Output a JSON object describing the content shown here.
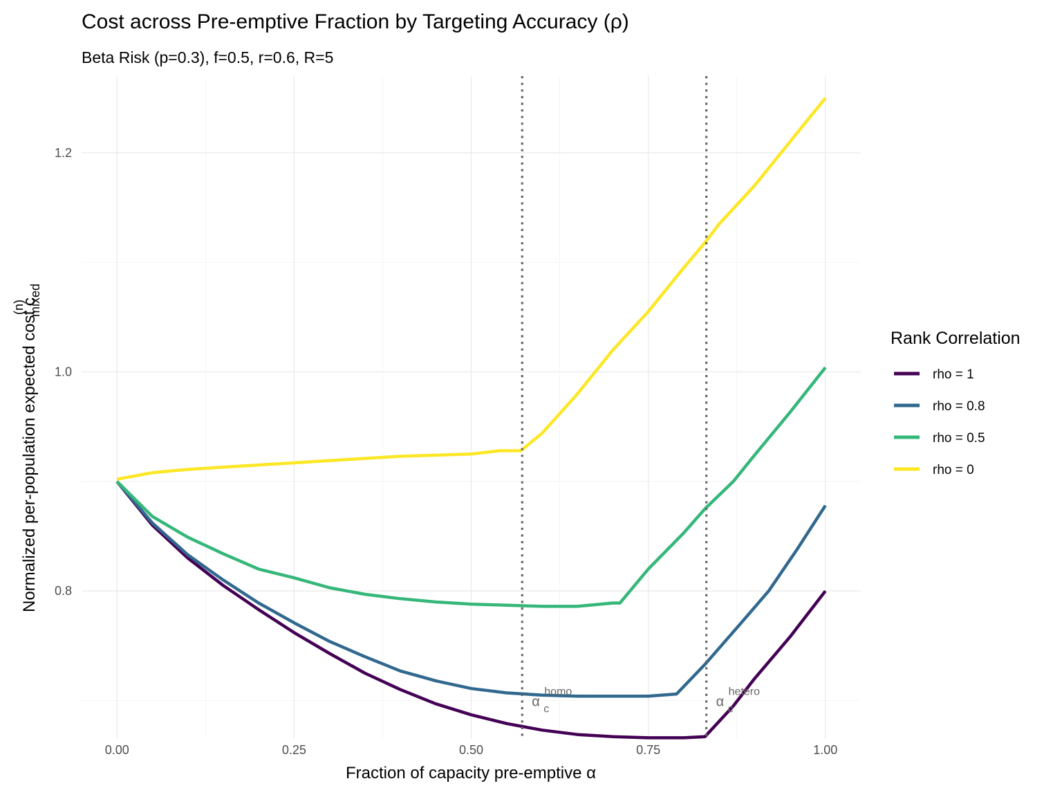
{
  "chart_data": {
    "type": "line",
    "title": "Cost across Pre-emptive Fraction by Targeting Accuracy (ρ)",
    "subtitle": "Beta Risk (p=0.3), f=0.5, r=0.6, R=5",
    "xlabel": "Fraction of capacity pre-emptive α",
    "ylabel": "Normalized per-population expected cost c",
    "ylabel_superscript": "(n)",
    "ylabel_subscript": "mixed",
    "xlim": [
      -0.05,
      1.05
    ],
    "ylim": [
      0.665,
      1.27
    ],
    "x_ticks": [
      0.0,
      0.25,
      0.5,
      0.75,
      1.0
    ],
    "x_tick_labels": [
      "0.00",
      "0.25",
      "0.50",
      "0.75",
      "1.00"
    ],
    "y_ticks": [
      0.8,
      1.0,
      1.2
    ],
    "y_tick_labels": [
      "0.8",
      "1.0",
      "1.2"
    ],
    "legend": {
      "title": "Rank Correlation",
      "position": "right"
    },
    "series": [
      {
        "name": "rho = 1",
        "color": "#440154",
        "x": [
          0.0,
          0.05,
          0.1,
          0.15,
          0.2,
          0.25,
          0.3,
          0.35,
          0.4,
          0.45,
          0.5,
          0.55,
          0.6,
          0.65,
          0.7,
          0.75,
          0.8,
          0.83,
          0.87,
          0.9,
          0.95,
          1.0
        ],
        "values": [
          0.9,
          0.86,
          0.83,
          0.805,
          0.783,
          0.762,
          0.743,
          0.725,
          0.71,
          0.697,
          0.687,
          0.679,
          0.673,
          0.669,
          0.667,
          0.666,
          0.666,
          0.667,
          0.695,
          0.72,
          0.758,
          0.8
        ]
      },
      {
        "name": "rho = 0.8",
        "color": "#31688e",
        "x": [
          0.0,
          0.05,
          0.1,
          0.15,
          0.2,
          0.25,
          0.3,
          0.35,
          0.4,
          0.45,
          0.5,
          0.55,
          0.6,
          0.65,
          0.7,
          0.75,
          0.79,
          0.83,
          0.88,
          0.92,
          0.96,
          1.0
        ],
        "values": [
          0.9,
          0.862,
          0.833,
          0.81,
          0.789,
          0.771,
          0.754,
          0.74,
          0.727,
          0.718,
          0.711,
          0.707,
          0.705,
          0.704,
          0.704,
          0.704,
          0.706,
          0.733,
          0.77,
          0.8,
          0.838,
          0.878
        ]
      },
      {
        "name": "rho = 0.5",
        "color": "#35b779",
        "x": [
          0.0,
          0.05,
          0.1,
          0.15,
          0.2,
          0.25,
          0.3,
          0.35,
          0.4,
          0.45,
          0.5,
          0.55,
          0.6,
          0.65,
          0.7,
          0.71,
          0.75,
          0.8,
          0.83,
          0.87,
          0.9,
          0.95,
          1.0
        ],
        "values": [
          0.9,
          0.868,
          0.849,
          0.834,
          0.82,
          0.812,
          0.803,
          0.797,
          0.793,
          0.79,
          0.788,
          0.787,
          0.786,
          0.786,
          0.789,
          0.789,
          0.82,
          0.853,
          0.875,
          0.9,
          0.924,
          0.963,
          1.004
        ]
      },
      {
        "name": "rho = 0",
        "color": "#fde725",
        "x": [
          0.0,
          0.05,
          0.1,
          0.15,
          0.2,
          0.25,
          0.3,
          0.35,
          0.4,
          0.45,
          0.5,
          0.54,
          0.57,
          0.6,
          0.65,
          0.7,
          0.75,
          0.8,
          0.83,
          0.85,
          0.9,
          0.95,
          1.0
        ],
        "values": [
          0.902,
          0.908,
          0.911,
          0.913,
          0.915,
          0.917,
          0.919,
          0.921,
          0.923,
          0.924,
          0.925,
          0.928,
          0.928,
          0.944,
          0.98,
          1.02,
          1.055,
          1.095,
          1.118,
          1.135,
          1.17,
          1.21,
          1.25
        ]
      }
    ],
    "vlines": [
      {
        "x": 0.572,
        "label": "α",
        "sup": "homo",
        "sub": "c"
      },
      {
        "x": 0.832,
        "label": "α",
        "sup": "hetero",
        "sub": "c"
      }
    ]
  }
}
